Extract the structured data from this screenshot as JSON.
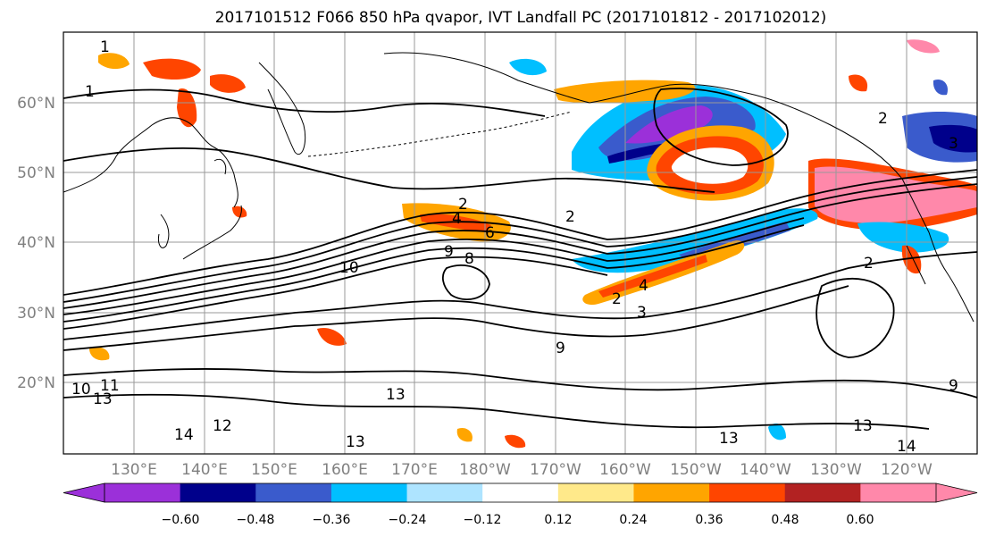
{
  "title": "2017101512 F066 850 hPa qvapor, IVT Landfall PC (2017101812 - 2017102012)",
  "lat_labels": [
    "60°N",
    "50°N",
    "40°N",
    "30°N",
    "20°N"
  ],
  "lon_labels": [
    "130°E",
    "140°E",
    "150°E",
    "160°E",
    "170°E",
    "180°W",
    "170°W",
    "160°W",
    "150°W",
    "140°W",
    "130°W",
    "120°W"
  ],
  "contour_labels": [
    "1",
    "1",
    "2",
    "2",
    "2",
    "3",
    "2",
    "4",
    "4",
    "6",
    "8",
    "9",
    "10",
    "2",
    "3",
    "9",
    "9",
    "13",
    "13",
    "12",
    "14",
    "11",
    "10",
    "13",
    "13",
    "14",
    "13"
  ],
  "colorbar": {
    "colors": [
      "#9b30d9",
      "#00008b",
      "#3a5bcc",
      "#00bfff",
      "#aee4ff",
      "#ffffff",
      "#ffe98a",
      "#ffa500",
      "#ff4500",
      "#b22222",
      "#ff88aa"
    ],
    "ticks": [
      "−0.60",
      "−0.48",
      "−0.36",
      "−0.24",
      "−0.12",
      "0.12",
      "0.24",
      "0.36",
      "0.48",
      "0.60"
    ]
  }
}
